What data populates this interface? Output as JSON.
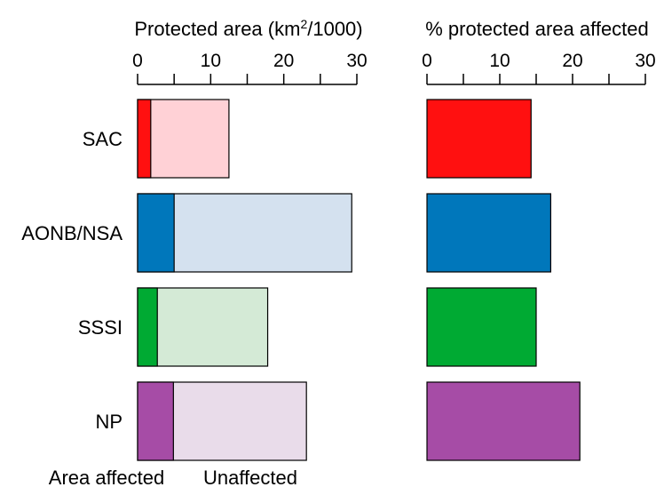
{
  "legend": {
    "affected_label": "Area affected",
    "unaffected_label": "Unaffected"
  },
  "chart_data": [
    {
      "type": "bar",
      "orientation": "horizontal",
      "stacked": true,
      "title_parts": [
        "Protected area (km",
        "2",
        "/1000)"
      ],
      "xlim": [
        0,
        30
      ],
      "ticks": [
        0,
        10,
        20,
        30
      ],
      "categories": [
        "SAC",
        "AONB/NSA",
        "SSSI",
        "NP"
      ],
      "series": [
        {
          "name": "Area affected",
          "values": [
            1.8,
            5.0,
            2.7,
            4.9
          ]
        },
        {
          "name": "Unaffected",
          "values": [
            10.7,
            24.3,
            15.1,
            18.2
          ]
        }
      ],
      "colors": {
        "affected": [
          "#ff1010",
          "#0077bb",
          "#00aa33",
          "#a64ca6"
        ],
        "unaffected": [
          "#ffd1d6",
          "#d4e1ef",
          "#d4ead6",
          "#e9dcea"
        ]
      }
    },
    {
      "type": "bar",
      "orientation": "horizontal",
      "title": "% protected area affected",
      "xlim": [
        0,
        30
      ],
      "ticks": [
        0,
        10,
        20,
        30
      ],
      "categories": [
        "SAC",
        "AONB/NSA",
        "SSSI",
        "NP"
      ],
      "values": [
        14.3,
        17.0,
        15.0,
        21.0
      ],
      "colors": [
        "#ff1010",
        "#0077bb",
        "#00aa33",
        "#a64ca6"
      ]
    }
  ]
}
